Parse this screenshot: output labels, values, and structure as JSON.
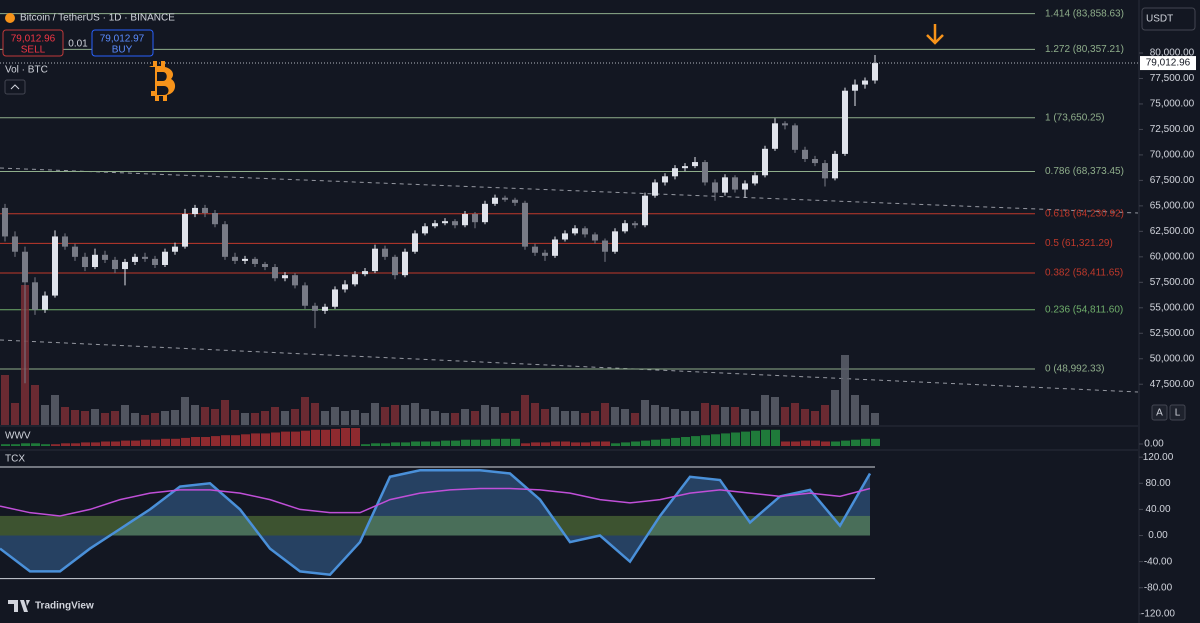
{
  "header": {
    "symbol": "Bitcoin / TetherUS · 1D · BINANCE",
    "sell_price": "79,012.96",
    "sell": "SELL",
    "spread": "0.01",
    "buy_price": "79,012.97",
    "buy": "BUY",
    "volume_label": "Vol · BTC",
    "currency": "USDT",
    "wwv_label": "WWV",
    "tcx_label": "TCX",
    "auto": "A",
    "log": "L",
    "brand": "TradingView"
  },
  "chart_data": {
    "type": "candlestick",
    "up_color": "#e0e3eb",
    "down_color": "#787b86",
    "volume_up_color": "#5d606b",
    "volume_down_color": "#7a2e35",
    "ylim": [
      43500,
      85200
    ],
    "yticks": [
      {
        "value": 47500,
        "label": "47,500.00"
      },
      {
        "value": 50000,
        "label": "50,000.00"
      },
      {
        "value": 52500,
        "label": "52,500.00"
      },
      {
        "value": 55000,
        "label": "55,000.00"
      },
      {
        "value": 57500,
        "label": "57,500.00"
      },
      {
        "value": 60000,
        "label": "60,000.00"
      },
      {
        "value": 62500,
        "label": "62,500.00"
      },
      {
        "value": 65000,
        "label": "65,000.00"
      },
      {
        "value": 67500,
        "label": "67,500.00"
      },
      {
        "value": 70000,
        "label": "70,000.00"
      },
      {
        "value": 72500,
        "label": "72,500.00"
      },
      {
        "value": 75000,
        "label": "75,000.00"
      },
      {
        "value": 77500,
        "label": "77,500.00"
      },
      {
        "value": 80000,
        "label": "80,000.00"
      }
    ],
    "last": {
      "value": 79012.96,
      "label": "79,012.96"
    },
    "fib_levels": [
      {
        "value": 83858.63,
        "label": "1.414 (83,858.63)",
        "color": "#8fae8b"
      },
      {
        "value": 80357.21,
        "label": "1.272 (80,357.21)",
        "color": "#8fae8b"
      },
      {
        "value": 73650.25,
        "label": "1 (73,650.25)",
        "color": "#8fae8b"
      },
      {
        "value": 68373.45,
        "label": "0.786 (68,373.45)",
        "color": "#8fae8b"
      },
      {
        "value": 64230.92,
        "label": "0.618 (64,230.92)",
        "color": "#c0392b"
      },
      {
        "value": 61321.29,
        "label": "0.5 (61,321.29)",
        "color": "#c0392b"
      },
      {
        "value": 58411.65,
        "label": "0.382 (58,411.65)",
        "color": "#c0392b"
      },
      {
        "value": 54811.6,
        "label": "0.236 (54,811.60)",
        "color": "#6fae6b"
      },
      {
        "value": 48992.33,
        "label": "0 (48,992.33)",
        "color": "#8fae8b"
      }
    ],
    "candles": [
      [
        64800,
        65200,
        61500,
        62000
      ],
      [
        62000,
        62500,
        60000,
        60500
      ],
      [
        60500,
        61000,
        47600,
        57500
      ],
      [
        57500,
        58000,
        54300,
        54800
      ],
      [
        54800,
        56600,
        54500,
        56200
      ],
      [
        56200,
        62600,
        56000,
        62000
      ],
      [
        62000,
        62300,
        60700,
        61000
      ],
      [
        61000,
        61300,
        59600,
        60000
      ],
      [
        60000,
        60400,
        58600,
        59000
      ],
      [
        59000,
        60800,
        58800,
        60200
      ],
      [
        60200,
        60600,
        59400,
        59700
      ],
      [
        59700,
        60000,
        58400,
        58800
      ],
      [
        58800,
        59800,
        57200,
        59500
      ],
      [
        59500,
        60300,
        59200,
        60000
      ],
      [
        60000,
        60400,
        59500,
        59800
      ],
      [
        59800,
        60100,
        58900,
        59200
      ],
      [
        59200,
        60800,
        59000,
        60500
      ],
      [
        60500,
        61400,
        60200,
        61000
      ],
      [
        61000,
        64700,
        60800,
        64200
      ],
      [
        64200,
        65100,
        63900,
        64800
      ],
      [
        64800,
        65100,
        63900,
        64300
      ],
      [
        64300,
        64600,
        62900,
        63200
      ],
      [
        63200,
        63500,
        59700,
        60000
      ],
      [
        60000,
        60400,
        59300,
        59600
      ],
      [
        59600,
        60100,
        59300,
        59800
      ],
      [
        59800,
        60000,
        59000,
        59300
      ],
      [
        59300,
        59500,
        58700,
        59000
      ],
      [
        59000,
        59300,
        57600,
        57900
      ],
      [
        57900,
        58500,
        57600,
        58200
      ],
      [
        58200,
        58400,
        56900,
        57200
      ],
      [
        57200,
        57500,
        54900,
        55200
      ],
      [
        55200,
        55500,
        53000,
        54700
      ],
      [
        54700,
        55400,
        54400,
        55100
      ],
      [
        55100,
        57100,
        54900,
        56800
      ],
      [
        56800,
        57700,
        56500,
        57300
      ],
      [
        57300,
        58600,
        57100,
        58300
      ],
      [
        58300,
        58900,
        58100,
        58600
      ],
      [
        58600,
        61200,
        58400,
        60800
      ],
      [
        60800,
        61100,
        59700,
        60000
      ],
      [
        60000,
        60200,
        57800,
        58200
      ],
      [
        58200,
        60800,
        58000,
        60500
      ],
      [
        60500,
        62600,
        60300,
        62300
      ],
      [
        62300,
        63300,
        62100,
        63000
      ],
      [
        63000,
        63600,
        62800,
        63300
      ],
      [
        63300,
        63800,
        63100,
        63500
      ],
      [
        63500,
        63700,
        62800,
        63100
      ],
      [
        63100,
        64500,
        62900,
        64200
      ],
      [
        64200,
        64400,
        62800,
        63400
      ],
      [
        63400,
        65500,
        63200,
        65200
      ],
      [
        65200,
        66100,
        65000,
        65800
      ],
      [
        65800,
        66000,
        65400,
        65600
      ],
      [
        65600,
        65800,
        65000,
        65300
      ],
      [
        65300,
        65500,
        60700,
        61000
      ],
      [
        61000,
        61300,
        60100,
        60400
      ],
      [
        60400,
        60700,
        59600,
        60100
      ],
      [
        60100,
        62000,
        59900,
        61700
      ],
      [
        61700,
        62600,
        61500,
        62300
      ],
      [
        62300,
        63100,
        62100,
        62800
      ],
      [
        62800,
        63000,
        61900,
        62200
      ],
      [
        62200,
        62400,
        61300,
        61600
      ],
      [
        61600,
        61800,
        59500,
        60500
      ],
      [
        60500,
        62800,
        60300,
        62500
      ],
      [
        62500,
        63600,
        62300,
        63300
      ],
      [
        63300,
        63500,
        62800,
        63100
      ],
      [
        63100,
        66300,
        62900,
        66000
      ],
      [
        66000,
        67600,
        65800,
        67300
      ],
      [
        67300,
        68200,
        67000,
        67900
      ],
      [
        67900,
        69000,
        67600,
        68700
      ],
      [
        68700,
        69200,
        68400,
        68900
      ],
      [
        68900,
        69800,
        68700,
        69300
      ],
      [
        69300,
        69500,
        67000,
        67300
      ],
      [
        67300,
        67600,
        65500,
        66300
      ],
      [
        66300,
        68100,
        66000,
        67800
      ],
      [
        67800,
        68000,
        66300,
        66600
      ],
      [
        66600,
        67500,
        65800,
        67200
      ],
      [
        67200,
        68300,
        67000,
        68000
      ],
      [
        68000,
        70900,
        67800,
        70600
      ],
      [
        70600,
        73600,
        70400,
        73100
      ],
      [
        73100,
        73300,
        72500,
        72900
      ],
      [
        72900,
        73100,
        70200,
        70500
      ],
      [
        70500,
        70800,
        69300,
        69600
      ],
      [
        69600,
        69900,
        68900,
        69200
      ],
      [
        69200,
        69500,
        66900,
        67700
      ],
      [
        67700,
        70400,
        67500,
        70100
      ],
      [
        70100,
        76600,
        69900,
        76300
      ],
      [
        76300,
        77400,
        74800,
        76900
      ],
      [
        76900,
        77600,
        76500,
        77300
      ],
      [
        77300,
        79800,
        77000,
        79013
      ]
    ],
    "volume": [
      50,
      22,
      140,
      40,
      20,
      30,
      18,
      15,
      14,
      16,
      12,
      14,
      20,
      12,
      10,
      12,
      14,
      15,
      28,
      20,
      18,
      16,
      25,
      15,
      12,
      12,
      14,
      18,
      14,
      16,
      28,
      22,
      14,
      18,
      14,
      15,
      12,
      22,
      18,
      20,
      20,
      22,
      16,
      14,
      12,
      12,
      16,
      14,
      20,
      18,
      12,
      14,
      30,
      22,
      16,
      18,
      14,
      14,
      12,
      14,
      22,
      18,
      16,
      12,
      25,
      20,
      18,
      16,
      14,
      14,
      22,
      20,
      18,
      18,
      16,
      14,
      30,
      28,
      18,
      22,
      16,
      14,
      20,
      35,
      70,
      30,
      20,
      12
    ],
    "vlim": [
      0,
      155
    ],
    "wwv": [
      2,
      2,
      3,
      3,
      2,
      -2,
      -3,
      -3,
      -4,
      -4,
      -5,
      -5,
      -6,
      -6,
      -7,
      -7,
      -8,
      -8,
      -9,
      -10,
      -10,
      -11,
      -12,
      -12,
      -13,
      -14,
      -14,
      -15,
      -16,
      -16,
      -17,
      -18,
      -18,
      -19,
      -20,
      -20,
      2,
      3,
      3,
      4,
      4,
      5,
      5,
      5,
      6,
      6,
      7,
      7,
      7,
      8,
      8,
      8,
      -3,
      -4,
      -4,
      -5,
      -5,
      -4,
      -4,
      -5,
      -5,
      3,
      4,
      5,
      6,
      7,
      8,
      9,
      10,
      11,
      12,
      13,
      14,
      15,
      16,
      17,
      18,
      18,
      -5,
      -5,
      -6,
      -6,
      -5,
      5,
      6,
      7,
      8,
      8
    ],
    "wwv_lim": [
      0,
      20
    ],
    "wwv_up_color": "#1f7a3a",
    "wwv_down_color": "#8e2a2f",
    "wwv_ticks": [
      {
        "value": 0,
        "label": "0.00"
      }
    ],
    "tcx_lim": [
      -134,
      131
    ],
    "tcx_ticks": [
      {
        "value": 120,
        "label": "120.00"
      },
      {
        "value": 80,
        "label": "80.00"
      },
      {
        "value": 40,
        "label": "40.00"
      },
      {
        "value": 0,
        "label": "0.00"
      },
      {
        "value": -40,
        "label": "-40.00"
      },
      {
        "value": -80,
        "label": "-80.00"
      },
      {
        "value": -120,
        "label": "-120.00"
      }
    ],
    "tcx_levels": [
      105,
      -66
    ],
    "tcx_series": [
      {
        "color": "#4a90d9",
        "values": [
          -20,
          -55,
          -55,
          -20,
          10,
          40,
          75,
          80,
          40,
          -20,
          -55,
          -60,
          -10,
          90,
          100,
          100,
          100,
          95,
          55,
          -10,
          0,
          -40,
          30,
          90,
          85,
          20,
          60,
          70,
          15,
          95
        ]
      },
      {
        "color": "#c04fd8",
        "values": [
          45,
          35,
          30,
          40,
          55,
          65,
          70,
          70,
          65,
          55,
          40,
          35,
          35,
          55,
          65,
          70,
          72,
          72,
          70,
          65,
          55,
          50,
          55,
          65,
          70,
          65,
          60,
          65,
          60,
          72
        ]
      }
    ]
  }
}
